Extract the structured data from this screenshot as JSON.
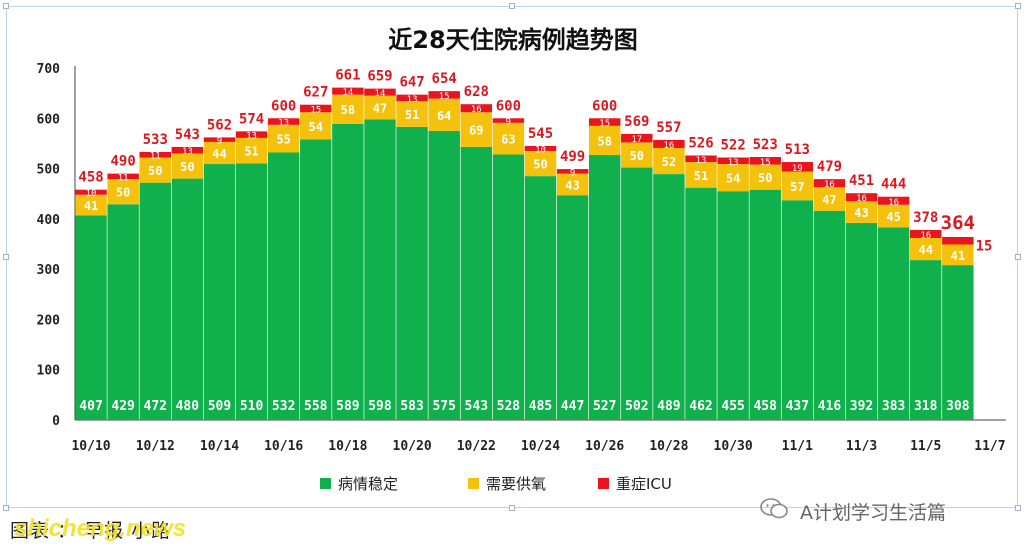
{
  "chart_data": {
    "type": "bar",
    "stacked": true,
    "title": "近28天住院病例趋势图",
    "categories": [
      "10/10",
      "10/11",
      "10/12",
      "10/13",
      "10/14",
      "10/15",
      "10/16",
      "10/17",
      "10/18",
      "10/19",
      "10/20",
      "10/21",
      "10/22",
      "10/23",
      "10/24",
      "10/25",
      "10/26",
      "10/27",
      "10/28",
      "10/29",
      "10/30",
      "10/31",
      "11/1",
      "11/2",
      "11/3",
      "11/4",
      "11/5",
      "11/6"
    ],
    "x_tick_labels": [
      "10/10",
      "10/12",
      "10/14",
      "10/16",
      "10/18",
      "10/20",
      "10/22",
      "10/24",
      "10/26",
      "10/28",
      "10/30",
      "11/1",
      "11/3",
      "11/5",
      "11/7"
    ],
    "y_ticks": [
      "0",
      "100",
      "200",
      "300",
      "400",
      "500",
      "600",
      "700"
    ],
    "ylim": [
      0,
      700
    ],
    "series": [
      {
        "name": "病情稳定",
        "color": "#10b04c",
        "values": [
          407,
          429,
          472,
          480,
          509,
          510,
          532,
          558,
          589,
          598,
          583,
          575,
          543,
          528,
          485,
          447,
          527,
          502,
          489,
          462,
          455,
          458,
          437,
          416,
          392,
          383,
          318,
          308
        ],
        "labels": [
          "407",
          "429",
          "472",
          "480",
          "509",
          "510",
          "532",
          "558",
          "589",
          "598",
          "583",
          "575",
          "543",
          "528",
          "485",
          "447",
          "527",
          "502",
          "489",
          "462",
          "455",
          "458",
          "437",
          "416",
          "392",
          "383",
          "318",
          "308"
        ]
      },
      {
        "name": "需要供氧",
        "color": "#f4c20d",
        "values": [
          41,
          50,
          50,
          50,
          44,
          51,
          55,
          54,
          58,
          47,
          51,
          64,
          69,
          63,
          50,
          43,
          58,
          50,
          52,
          51,
          54,
          50,
          57,
          47,
          43,
          45,
          44,
          41
        ],
        "labels": [
          "41",
          "50",
          "50",
          "50",
          "44",
          "51",
          "55",
          "54",
          "58",
          "47",
          "51",
          "64",
          "69",
          "63",
          "50",
          "43",
          "58",
          "50",
          "52",
          "51",
          "54",
          "50",
          "57",
          "47",
          "43",
          "45",
          "44",
          "41"
        ]
      },
      {
        "name": "重症ICU",
        "color": "#e8141e",
        "values": [
          10,
          11,
          11,
          13,
          9,
          13,
          13,
          15,
          14,
          14,
          13,
          15,
          16,
          9,
          10,
          9,
          15,
          17,
          16,
          13,
          13,
          15,
          19,
          16,
          16,
          16,
          16,
          15
        ],
        "labels": [
          "10",
          "11",
          "11",
          "13",
          "9",
          "13",
          "13",
          "15",
          "14",
          "14",
          "13",
          "15",
          "16",
          "9",
          "10",
          "9",
          "15",
          "17",
          "16",
          "13",
          "13",
          "15",
          "19",
          "16",
          "16",
          "16",
          "16",
          "15"
        ]
      }
    ],
    "totals": [
      "458",
      "490",
      "533",
      "543",
      "562",
      "574",
      "600",
      "627",
      "661",
      "659",
      "647",
      "654",
      "628",
      "600",
      "545",
      "499",
      "600",
      "569",
      "557",
      "526",
      "522",
      "523",
      "513",
      "479",
      "451",
      "444",
      "378",
      "364"
    ],
    "legend_position": "bottom",
    "grid": false
  },
  "footer": {
    "credit": "图表 ： 早报 小路",
    "brand": "shicheng.news",
    "wechat": "A计划学习生活篇"
  }
}
